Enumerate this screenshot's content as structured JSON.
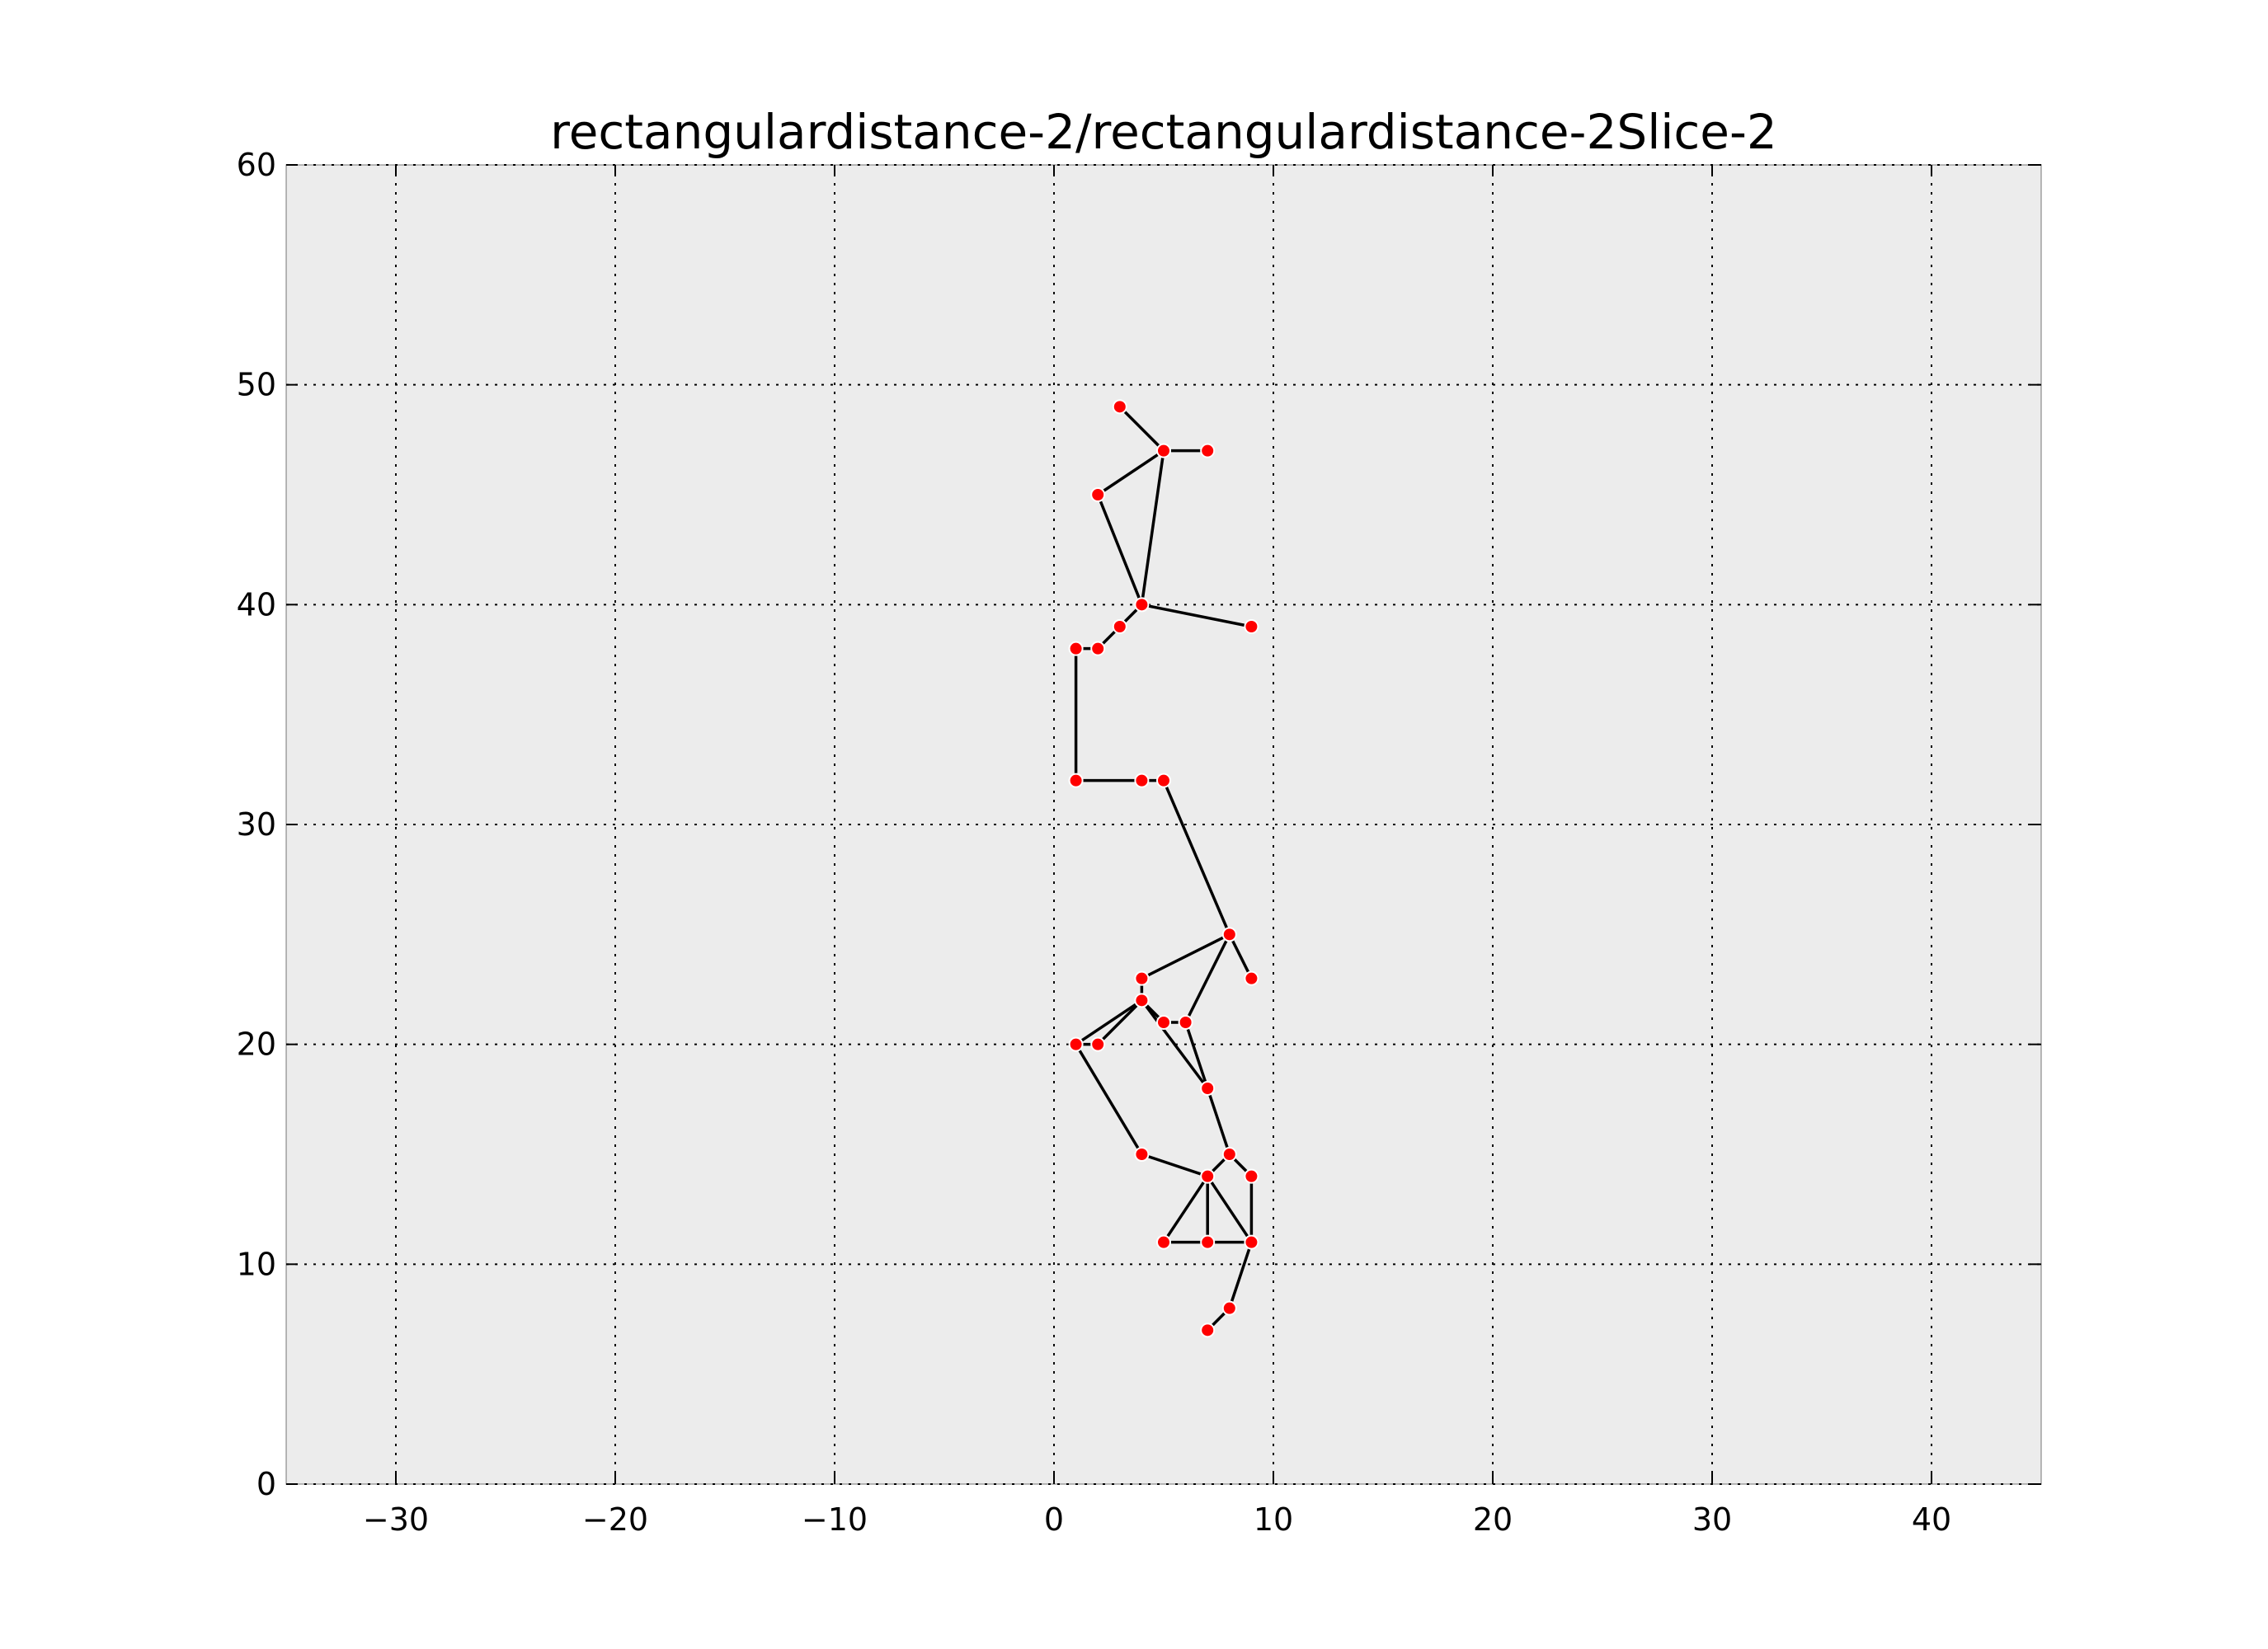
{
  "chart_data": {
    "type": "scatter",
    "title": "rectangulardistance-2/rectangulardistance-2Slice-2",
    "xlabel": "",
    "ylabel": "",
    "xlim": [
      -35,
      45
    ],
    "ylim": [
      0,
      60
    ],
    "xticks": [
      -30,
      -20,
      -10,
      0,
      10,
      20,
      30,
      40
    ],
    "xtick_labels": [
      "−30",
      "−20",
      "−10",
      "0",
      "10",
      "20",
      "30",
      "40"
    ],
    "yticks": [
      0,
      10,
      20,
      30,
      40,
      50,
      60
    ],
    "ytick_labels": [
      "0",
      "10",
      "20",
      "30",
      "40",
      "50",
      "60"
    ],
    "grid": true,
    "background_color": "#ececec",
    "point_color": "#ff0000",
    "edge_color": "#000000",
    "points": [
      [
        3,
        49
      ],
      [
        5,
        47
      ],
      [
        7,
        47
      ],
      [
        2,
        45
      ],
      [
        4,
        40
      ],
      [
        9,
        39
      ],
      [
        3,
        39
      ],
      [
        2,
        38
      ],
      [
        1,
        38
      ],
      [
        1,
        32
      ],
      [
        4,
        32
      ],
      [
        5,
        32
      ],
      [
        8,
        25
      ],
      [
        9,
        23
      ],
      [
        4,
        23
      ],
      [
        4,
        22
      ],
      [
        6,
        21
      ],
      [
        5,
        21
      ],
      [
        1,
        20
      ],
      [
        2,
        20
      ],
      [
        7,
        18
      ],
      [
        4,
        15
      ],
      [
        8,
        15
      ],
      [
        7,
        14
      ],
      [
        9,
        14
      ],
      [
        5,
        11
      ],
      [
        7,
        11
      ],
      [
        9,
        11
      ],
      [
        8,
        8
      ],
      [
        7,
        7
      ]
    ],
    "edges": [
      [
        [
          3,
          49
        ],
        [
          5,
          47
        ]
      ],
      [
        [
          5,
          47
        ],
        [
          7,
          47
        ]
      ],
      [
        [
          5,
          47
        ],
        [
          2,
          45
        ]
      ],
      [
        [
          5,
          47
        ],
        [
          4,
          40
        ]
      ],
      [
        [
          2,
          45
        ],
        [
          4,
          40
        ]
      ],
      [
        [
          4,
          40
        ],
        [
          9,
          39
        ]
      ],
      [
        [
          4,
          40
        ],
        [
          3,
          39
        ]
      ],
      [
        [
          3,
          39
        ],
        [
          2,
          38
        ]
      ],
      [
        [
          2,
          38
        ],
        [
          1,
          38
        ]
      ],
      [
        [
          1,
          38
        ],
        [
          1,
          32
        ]
      ],
      [
        [
          1,
          32
        ],
        [
          4,
          32
        ]
      ],
      [
        [
          4,
          32
        ],
        [
          5,
          32
        ]
      ],
      [
        [
          5,
          32
        ],
        [
          8,
          25
        ]
      ],
      [
        [
          8,
          25
        ],
        [
          4,
          23
        ]
      ],
      [
        [
          8,
          25
        ],
        [
          9,
          23
        ]
      ],
      [
        [
          8,
          25
        ],
        [
          6,
          21
        ]
      ],
      [
        [
          4,
          23
        ],
        [
          4,
          22
        ]
      ],
      [
        [
          4,
          22
        ],
        [
          1,
          20
        ]
      ],
      [
        [
          4,
          22
        ],
        [
          2,
          20
        ]
      ],
      [
        [
          4,
          22
        ],
        [
          5,
          21
        ]
      ],
      [
        [
          4,
          22
        ],
        [
          7,
          18
        ]
      ],
      [
        [
          5,
          21
        ],
        [
          6,
          21
        ]
      ],
      [
        [
          6,
          21
        ],
        [
          7,
          18
        ]
      ],
      [
        [
          1,
          20
        ],
        [
          2,
          20
        ]
      ],
      [
        [
          1,
          20
        ],
        [
          4,
          15
        ]
      ],
      [
        [
          4,
          15
        ],
        [
          7,
          14
        ]
      ],
      [
        [
          7,
          18
        ],
        [
          8,
          15
        ]
      ],
      [
        [
          8,
          15
        ],
        [
          7,
          14
        ]
      ],
      [
        [
          8,
          15
        ],
        [
          9,
          14
        ]
      ],
      [
        [
          7,
          14
        ],
        [
          5,
          11
        ]
      ],
      [
        [
          7,
          14
        ],
        [
          7,
          11
        ]
      ],
      [
        [
          7,
          14
        ],
        [
          9,
          11
        ]
      ],
      [
        [
          9,
          14
        ],
        [
          9,
          11
        ]
      ],
      [
        [
          5,
          11
        ],
        [
          7,
          11
        ]
      ],
      [
        [
          7,
          11
        ],
        [
          9,
          11
        ]
      ],
      [
        [
          9,
          11
        ],
        [
          8,
          8
        ]
      ],
      [
        [
          8,
          8
        ],
        [
          7,
          7
        ]
      ]
    ]
  }
}
